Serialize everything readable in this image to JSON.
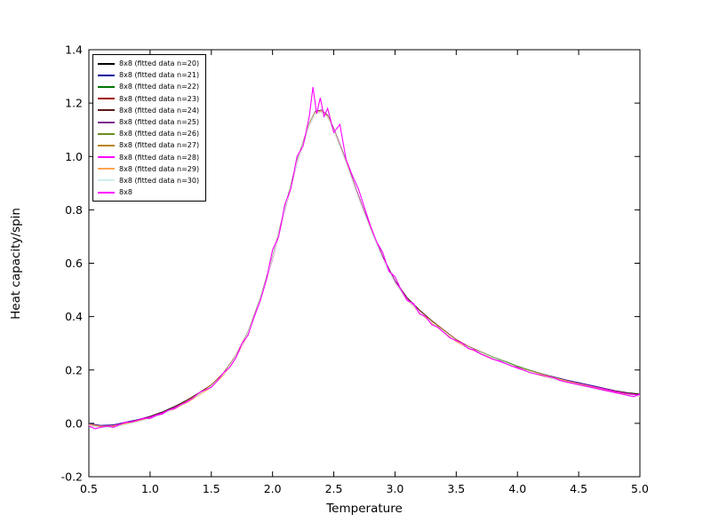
{
  "figure": {
    "background": "#ffffff",
    "axis_color": "#000000"
  },
  "chart_data": {
    "type": "line",
    "title": "",
    "xlabel": "Temperature",
    "ylabel": "Heat capacity/spin",
    "xlim": [
      0.5,
      5.0
    ],
    "ylim": [
      -0.2,
      1.4
    ],
    "xticks": [
      0.5,
      1.0,
      1.5,
      2.0,
      2.5,
      3.0,
      3.5,
      4.0,
      4.5,
      5.0
    ],
    "yticks": [
      -0.2,
      0.0,
      0.2,
      0.4,
      0.6,
      0.8,
      1.0,
      1.2,
      1.4
    ],
    "grid": false,
    "legend_position": "upper-left",
    "fit_curve_points": [
      [
        0.5,
        -0.005
      ],
      [
        0.6,
        -0.012
      ],
      [
        0.7,
        -0.01
      ],
      [
        0.8,
        0.0
      ],
      [
        0.9,
        0.01
      ],
      [
        1.0,
        0.022
      ],
      [
        1.1,
        0.038
      ],
      [
        1.2,
        0.058
      ],
      [
        1.3,
        0.082
      ],
      [
        1.4,
        0.11
      ],
      [
        1.5,
        0.14
      ],
      [
        1.6,
        0.185
      ],
      [
        1.7,
        0.25
      ],
      [
        1.8,
        0.34
      ],
      [
        1.9,
        0.465
      ],
      [
        2.0,
        0.62
      ],
      [
        2.1,
        0.8
      ],
      [
        2.2,
        0.98
      ],
      [
        2.3,
        1.12
      ],
      [
        2.35,
        1.165
      ],
      [
        2.4,
        1.17
      ],
      [
        2.45,
        1.15
      ],
      [
        2.5,
        1.1
      ],
      [
        2.6,
        0.98
      ],
      [
        2.7,
        0.85
      ],
      [
        2.8,
        0.73
      ],
      [
        2.9,
        0.62
      ],
      [
        3.0,
        0.53
      ],
      [
        3.1,
        0.465
      ],
      [
        3.2,
        0.42
      ],
      [
        3.3,
        0.38
      ],
      [
        3.4,
        0.345
      ],
      [
        3.5,
        0.31
      ],
      [
        3.6,
        0.285
      ],
      [
        3.7,
        0.265
      ],
      [
        3.8,
        0.245
      ],
      [
        3.9,
        0.228
      ],
      [
        4.0,
        0.21
      ],
      [
        4.1,
        0.195
      ],
      [
        4.2,
        0.182
      ],
      [
        4.3,
        0.17
      ],
      [
        4.4,
        0.158
      ],
      [
        4.5,
        0.148
      ],
      [
        4.6,
        0.138
      ],
      [
        4.7,
        0.128
      ],
      [
        4.8,
        0.118
      ],
      [
        4.9,
        0.11
      ],
      [
        5.0,
        0.105
      ]
    ],
    "series": [
      {
        "name": "8x8 (fitted data n=20)",
        "color": "#000000",
        "kind": "fit"
      },
      {
        "name": "8x8 (fitted data n=21)",
        "color": "#00009b",
        "kind": "fit"
      },
      {
        "name": "8x8 (fitted data n=22)",
        "color": "#007700",
        "kind": "fit"
      },
      {
        "name": "8x8 (fitted data n=23)",
        "color": "#a00000",
        "kind": "fit"
      },
      {
        "name": "8x8 (fitted data n=24)",
        "color": "#5a1a1a",
        "kind": "fit"
      },
      {
        "name": "8x8 (fitted data n=25)",
        "color": "#7b2d8b",
        "kind": "fit"
      },
      {
        "name": "8x8 (fitted data n=26)",
        "color": "#6b8e23",
        "kind": "fit"
      },
      {
        "name": "8x8 (fitted data n=27)",
        "color": "#b8860b",
        "kind": "fit"
      },
      {
        "name": "8x8 (fitted data n=28)",
        "color": "#ff00ff",
        "kind": "fit"
      },
      {
        "name": "8x8 (fitted data n=29)",
        "color": "#ffa54f",
        "kind": "fit"
      },
      {
        "name": "8x8 (fitted data n=30)",
        "color": "#cfefef",
        "kind": "fit"
      },
      {
        "name": "8x8",
        "color": "#ff00ff",
        "kind": "raw",
        "points": [
          [
            0.5,
            -0.01
          ],
          [
            0.55,
            -0.02
          ],
          [
            0.6,
            -0.015
          ],
          [
            0.65,
            -0.01
          ],
          [
            0.7,
            -0.015
          ],
          [
            0.75,
            -0.005
          ],
          [
            0.8,
            0.005
          ],
          [
            0.85,
            0.005
          ],
          [
            0.9,
            0.012
          ],
          [
            0.95,
            0.02
          ],
          [
            1.0,
            0.018
          ],
          [
            1.05,
            0.03
          ],
          [
            1.1,
            0.035
          ],
          [
            1.15,
            0.05
          ],
          [
            1.2,
            0.055
          ],
          [
            1.25,
            0.07
          ],
          [
            1.3,
            0.08
          ],
          [
            1.35,
            0.095
          ],
          [
            1.4,
            0.115
          ],
          [
            1.45,
            0.125
          ],
          [
            1.5,
            0.135
          ],
          [
            1.55,
            0.16
          ],
          [
            1.6,
            0.19
          ],
          [
            1.65,
            0.21
          ],
          [
            1.7,
            0.245
          ],
          [
            1.75,
            0.3
          ],
          [
            1.8,
            0.33
          ],
          [
            1.85,
            0.4
          ],
          [
            1.9,
            0.46
          ],
          [
            1.95,
            0.54
          ],
          [
            2.0,
            0.65
          ],
          [
            2.05,
            0.7
          ],
          [
            2.1,
            0.82
          ],
          [
            2.15,
            0.88
          ],
          [
            2.2,
            1.0
          ],
          [
            2.25,
            1.04
          ],
          [
            2.3,
            1.15
          ],
          [
            2.33,
            1.26
          ],
          [
            2.36,
            1.16
          ],
          [
            2.39,
            1.22
          ],
          [
            2.42,
            1.15
          ],
          [
            2.45,
            1.18
          ],
          [
            2.5,
            1.09
          ],
          [
            2.55,
            1.12
          ],
          [
            2.6,
            0.99
          ],
          [
            2.65,
            0.93
          ],
          [
            2.7,
            0.88
          ],
          [
            2.75,
            0.81
          ],
          [
            2.8,
            0.74
          ],
          [
            2.85,
            0.68
          ],
          [
            2.9,
            0.64
          ],
          [
            2.95,
            0.57
          ],
          [
            3.0,
            0.55
          ],
          [
            3.05,
            0.5
          ],
          [
            3.1,
            0.46
          ],
          [
            3.15,
            0.45
          ],
          [
            3.2,
            0.41
          ],
          [
            3.25,
            0.4
          ],
          [
            3.3,
            0.37
          ],
          [
            3.35,
            0.36
          ],
          [
            3.4,
            0.34
          ],
          [
            3.45,
            0.32
          ],
          [
            3.5,
            0.31
          ],
          [
            3.55,
            0.3
          ],
          [
            3.6,
            0.28
          ],
          [
            3.65,
            0.275
          ],
          [
            3.7,
            0.26
          ],
          [
            3.75,
            0.25
          ],
          [
            3.8,
            0.24
          ],
          [
            3.85,
            0.235
          ],
          [
            3.9,
            0.225
          ],
          [
            3.95,
            0.215
          ],
          [
            4.0,
            0.21
          ],
          [
            4.05,
            0.2
          ],
          [
            4.1,
            0.19
          ],
          [
            4.15,
            0.185
          ],
          [
            4.2,
            0.18
          ],
          [
            4.25,
            0.175
          ],
          [
            4.3,
            0.17
          ],
          [
            4.35,
            0.16
          ],
          [
            4.4,
            0.155
          ],
          [
            4.45,
            0.15
          ],
          [
            4.5,
            0.145
          ],
          [
            4.55,
            0.14
          ],
          [
            4.6,
            0.135
          ],
          [
            4.65,
            0.13
          ],
          [
            4.7,
            0.125
          ],
          [
            4.75,
            0.12
          ],
          [
            4.8,
            0.115
          ],
          [
            4.85,
            0.11
          ],
          [
            4.9,
            0.105
          ],
          [
            4.95,
            0.1
          ],
          [
            5.0,
            0.11
          ]
        ]
      }
    ]
  }
}
